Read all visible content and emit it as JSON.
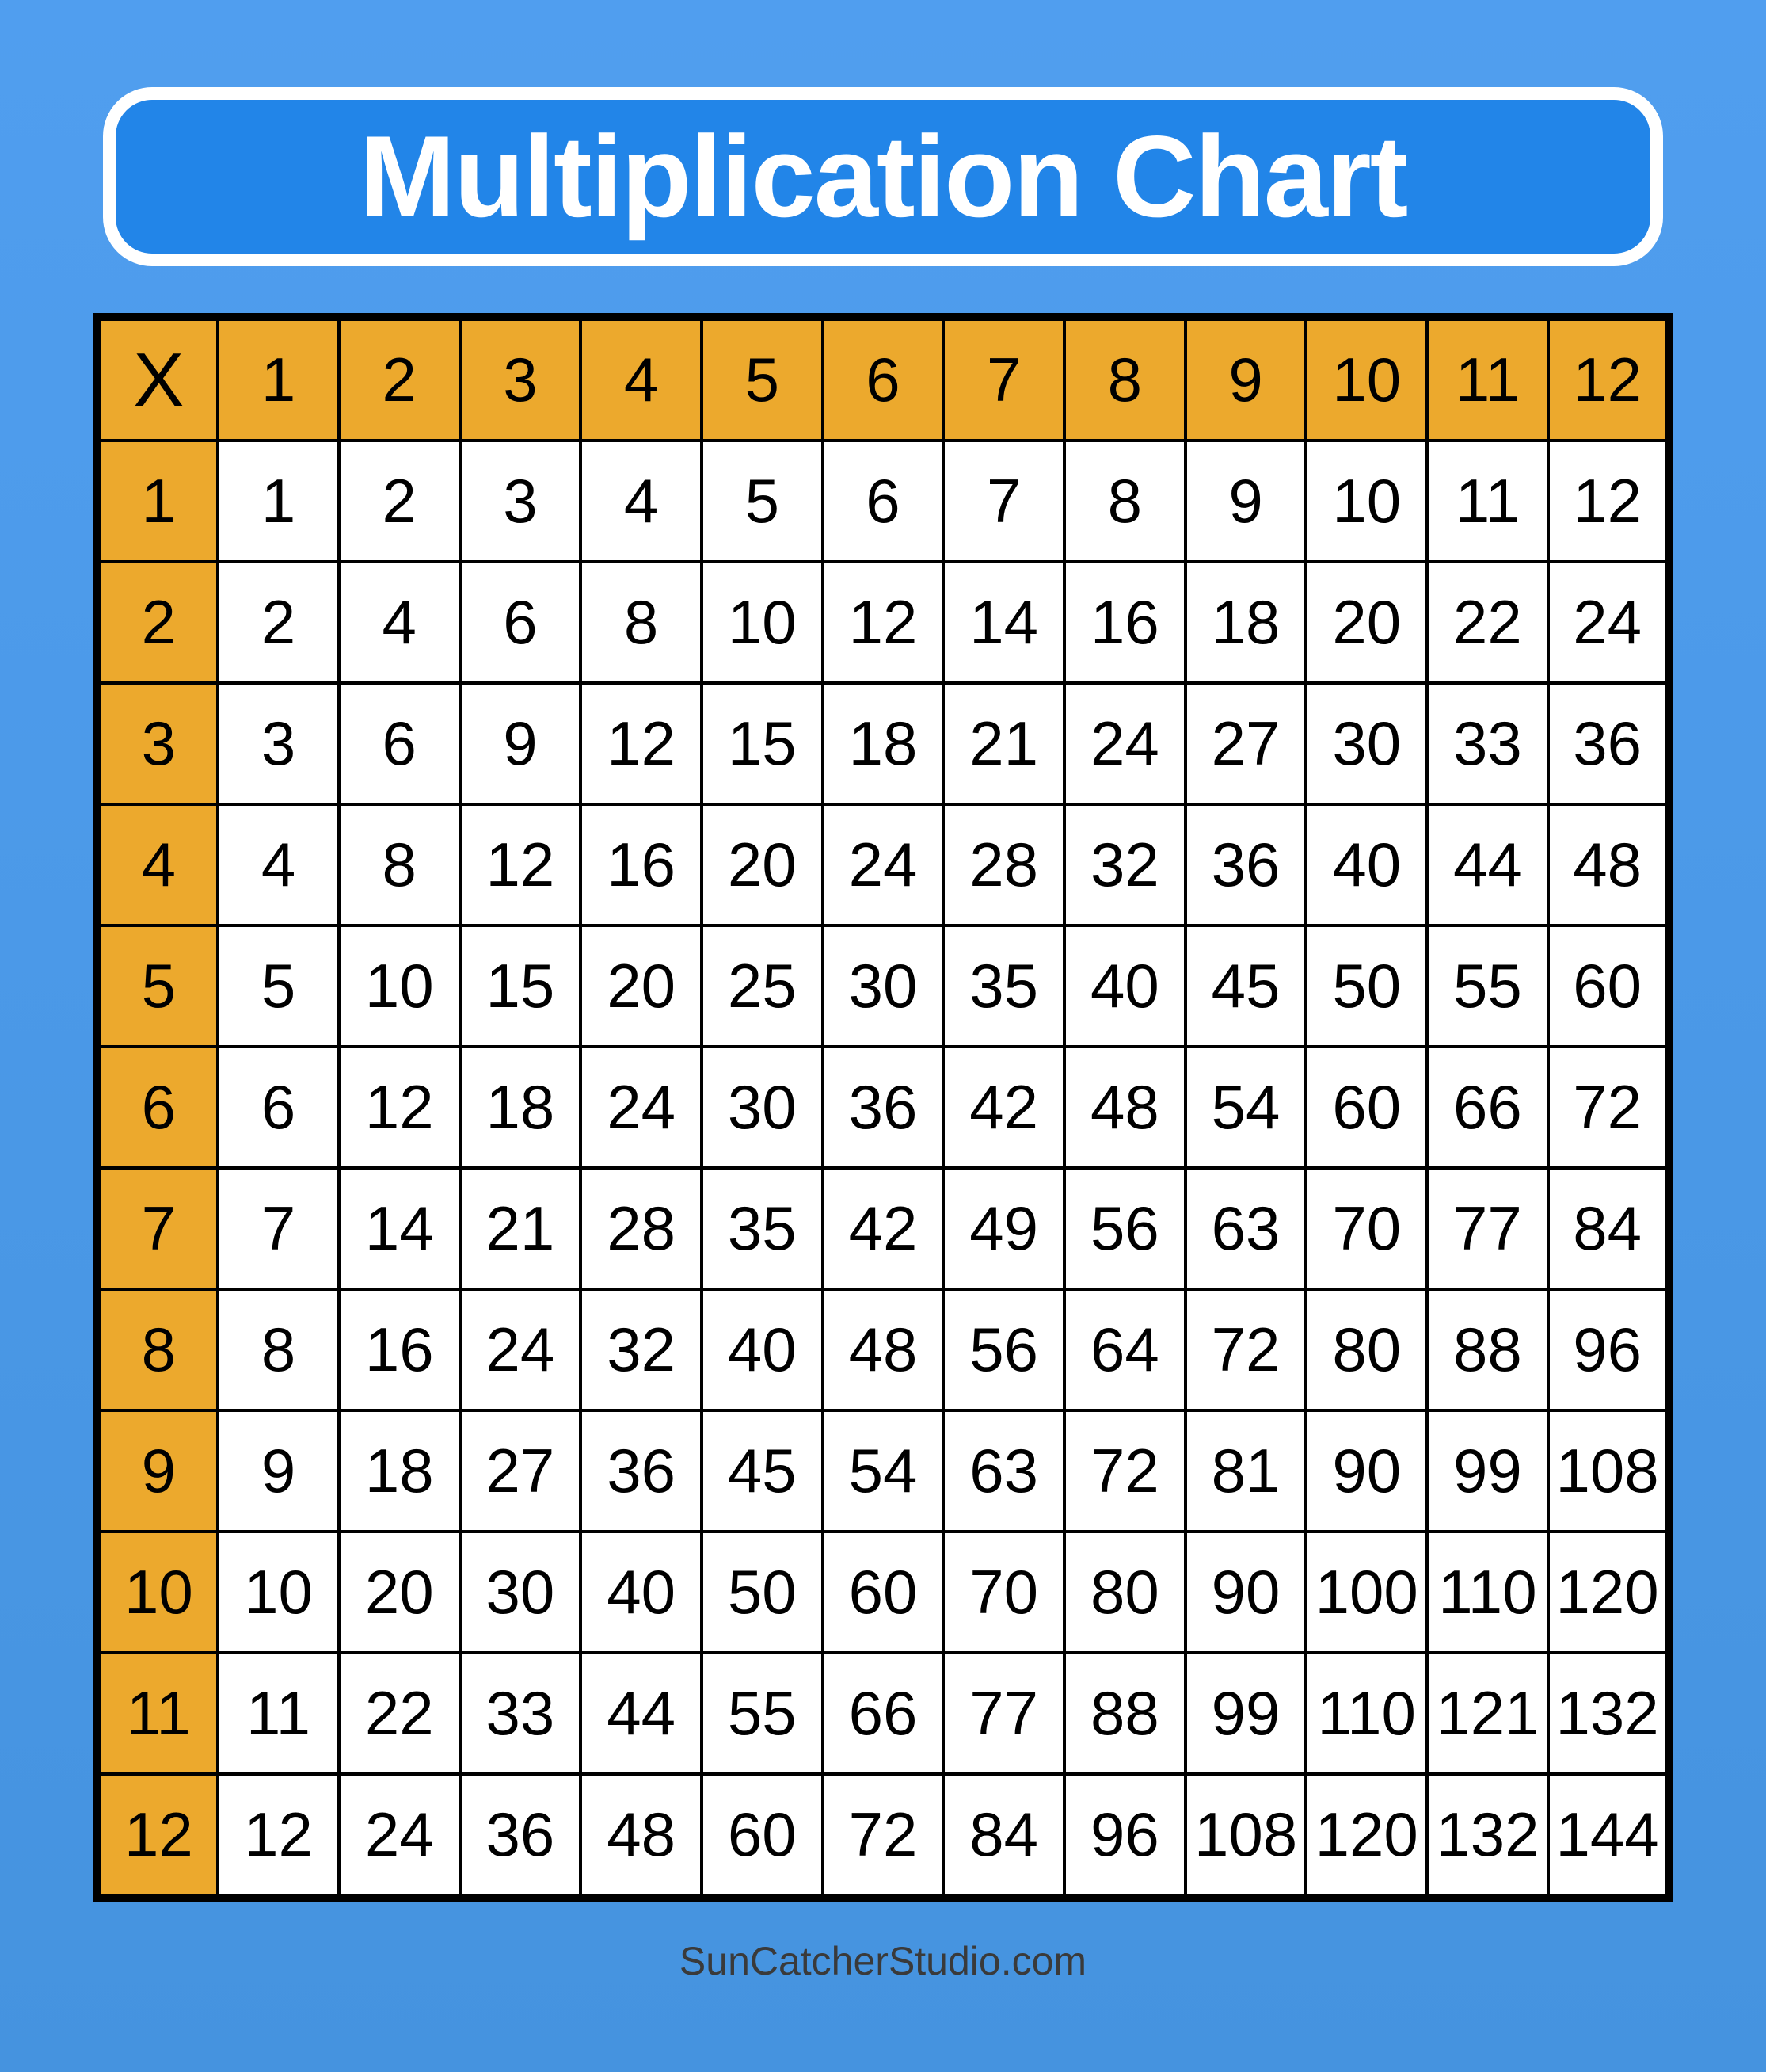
{
  "colors": {
    "background_top": "#509EEF",
    "background_bottom": "#4593DF",
    "banner_fill": "#2285E8",
    "banner_border": "#FFFFFF",
    "banner_text": "#FFFFFF",
    "header_bg": "#ECA92D",
    "cell_bg": "#FFFFFF",
    "grid": "#000000",
    "cell_text": "#000000",
    "footer_text": "#3A3A3A"
  },
  "footer": {
    "text": "SunCatcherStudio.com"
  },
  "chart_data": {
    "type": "table",
    "title": "Multiplication Chart",
    "corner_label": "X",
    "column_headers": [
      "1",
      "2",
      "3",
      "4",
      "5",
      "6",
      "7",
      "8",
      "9",
      "10",
      "11",
      "12"
    ],
    "row_headers": [
      "1",
      "2",
      "3",
      "4",
      "5",
      "6",
      "7",
      "8",
      "9",
      "10",
      "11",
      "12"
    ],
    "values": [
      [
        1,
        2,
        3,
        4,
        5,
        6,
        7,
        8,
        9,
        10,
        11,
        12
      ],
      [
        2,
        4,
        6,
        8,
        10,
        12,
        14,
        16,
        18,
        20,
        22,
        24
      ],
      [
        3,
        6,
        9,
        12,
        15,
        18,
        21,
        24,
        27,
        30,
        33,
        36
      ],
      [
        4,
        8,
        12,
        16,
        20,
        24,
        28,
        32,
        36,
        40,
        44,
        48
      ],
      [
        5,
        10,
        15,
        20,
        25,
        30,
        35,
        40,
        45,
        50,
        55,
        60
      ],
      [
        6,
        12,
        18,
        24,
        30,
        36,
        42,
        48,
        54,
        60,
        66,
        72
      ],
      [
        7,
        14,
        21,
        28,
        35,
        42,
        49,
        56,
        63,
        70,
        77,
        84
      ],
      [
        8,
        16,
        24,
        32,
        40,
        48,
        56,
        64,
        72,
        80,
        88,
        96
      ],
      [
        9,
        18,
        27,
        36,
        45,
        54,
        63,
        72,
        81,
        90,
        99,
        108
      ],
      [
        10,
        20,
        30,
        40,
        50,
        60,
        70,
        80,
        90,
        100,
        110,
        120
      ],
      [
        11,
        22,
        33,
        44,
        55,
        66,
        77,
        88,
        99,
        110,
        121,
        132
      ],
      [
        12,
        24,
        36,
        48,
        60,
        72,
        84,
        96,
        108,
        120,
        132,
        144
      ]
    ]
  }
}
